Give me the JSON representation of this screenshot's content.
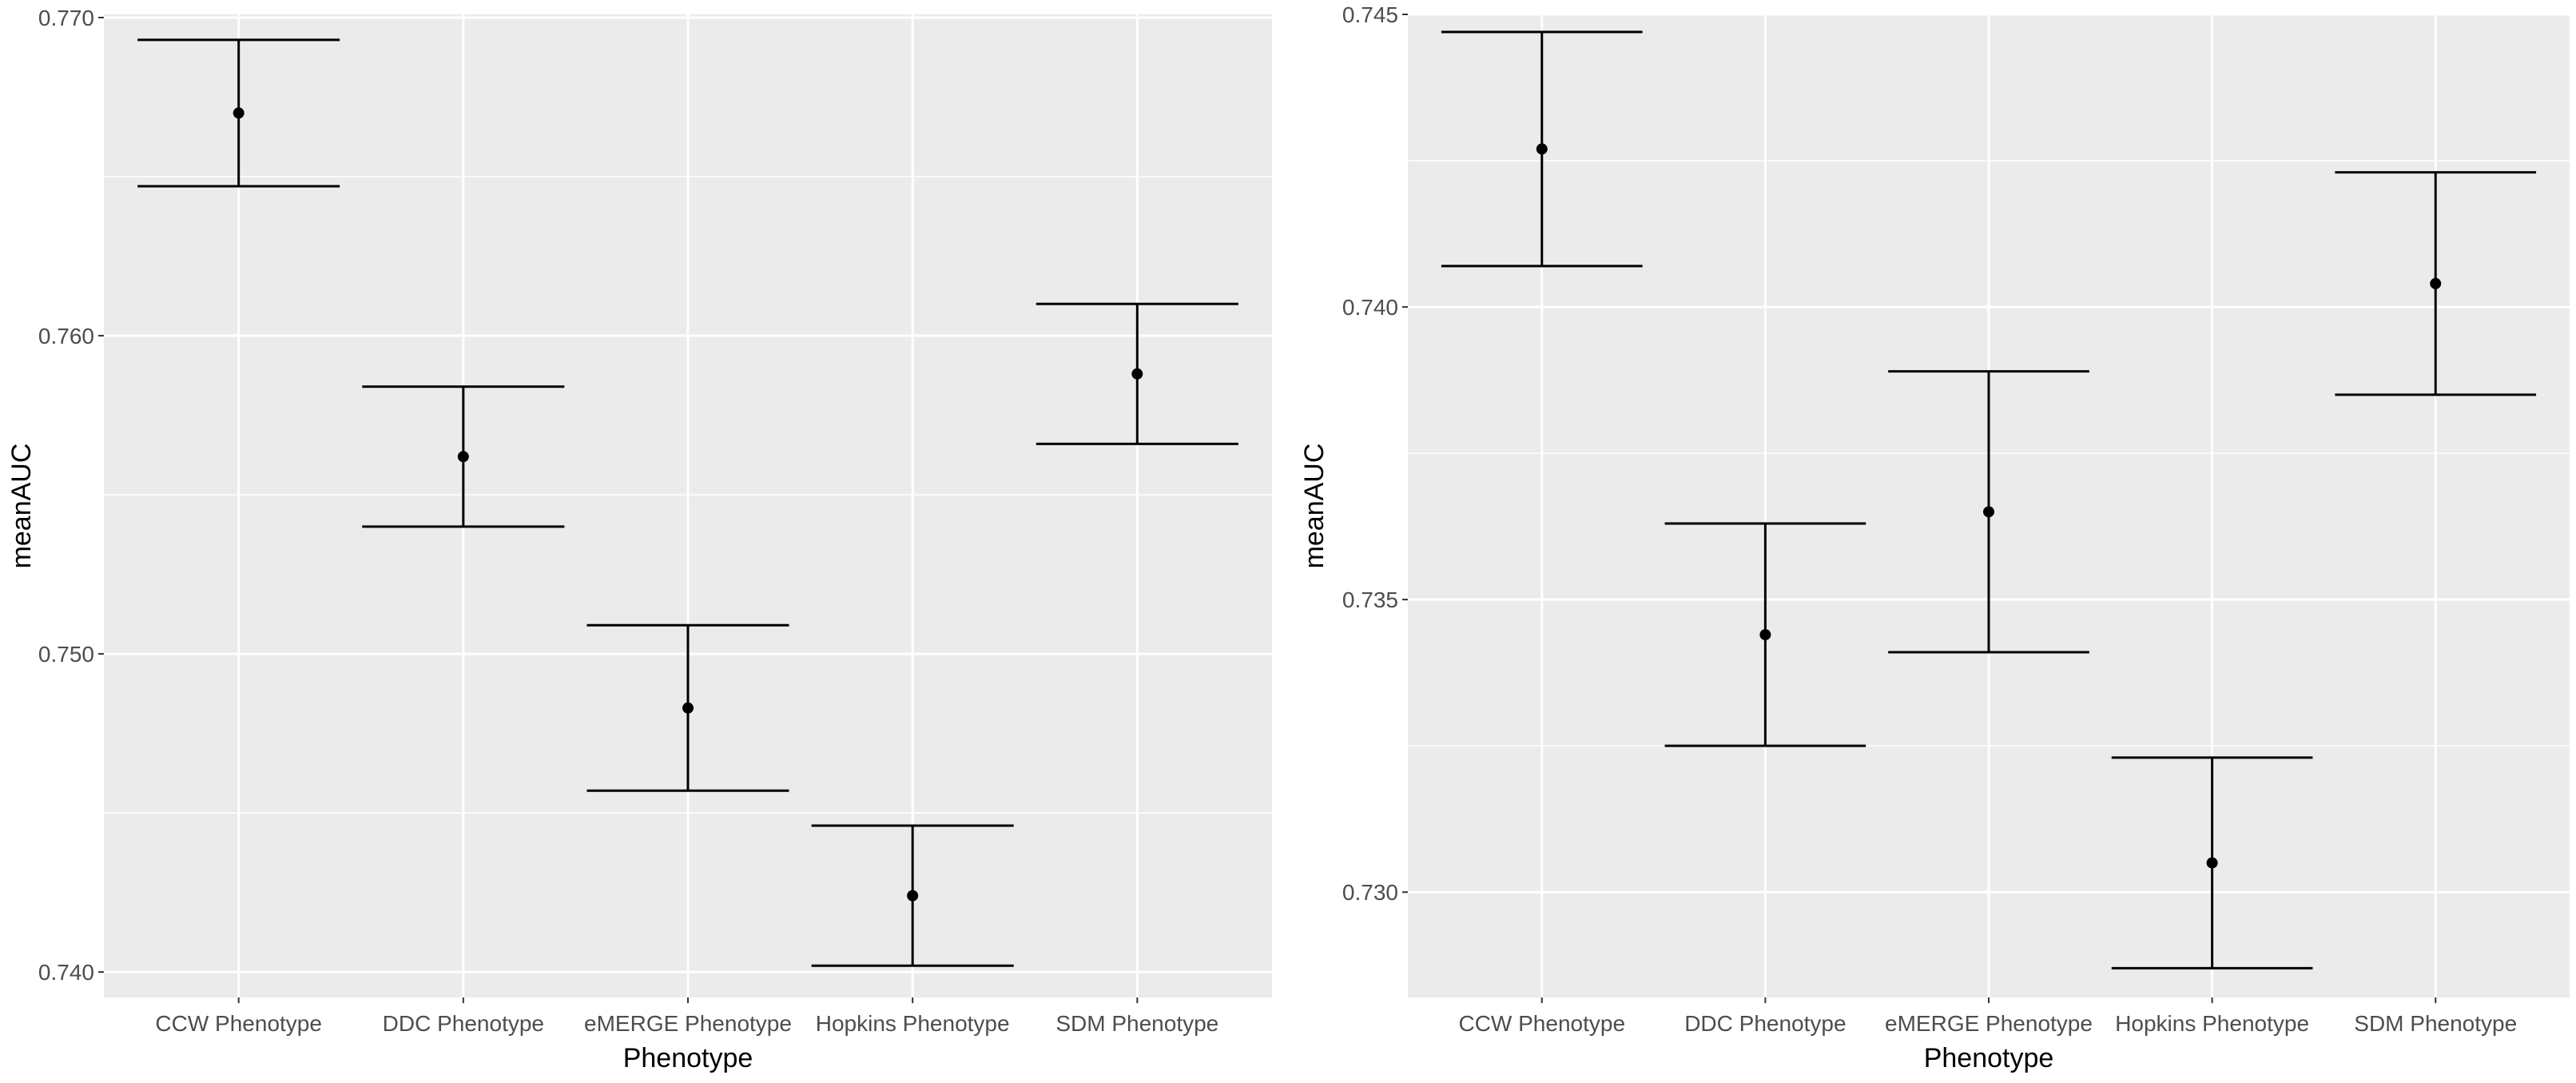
{
  "chart_data": [
    {
      "type": "errorbar",
      "title": "",
      "xlabel": "Phenotype",
      "ylabel": "meanAUC",
      "categories": [
        "CCW Phenotype",
        "DDC Phenotype",
        "eMERGE Phenotype",
        "Hopkins Phenotype",
        "SDM Phenotype"
      ],
      "values": [
        0.767,
        0.7562,
        0.7483,
        0.7424,
        0.7588
      ],
      "lower": [
        0.7647,
        0.754,
        0.7457,
        0.7402,
        0.7566
      ],
      "upper": [
        0.7693,
        0.7584,
        0.7509,
        0.7446,
        0.761
      ],
      "ylim": [
        0.7392,
        0.7701
      ],
      "yticks": [
        0.74,
        0.75,
        0.76,
        0.77
      ],
      "ytick_labels": [
        "0.740",
        "0.750",
        "0.760",
        "0.770"
      ],
      "grid": true
    },
    {
      "type": "errorbar",
      "title": "",
      "xlabel": "Phenotype",
      "ylabel": "meanAUC",
      "categories": [
        "CCW Phenotype",
        "DDC Phenotype",
        "eMERGE Phenotype",
        "Hopkins Phenotype",
        "SDM Phenotype"
      ],
      "values": [
        0.7427,
        0.7344,
        0.7365,
        0.7305,
        0.7404
      ],
      "lower": [
        0.7407,
        0.7325,
        0.7341,
        0.7287,
        0.7385
      ],
      "upper": [
        0.7447,
        0.7363,
        0.7389,
        0.7323,
        0.7423
      ],
      "ylim": [
        0.7282,
        0.745
      ],
      "yticks": [
        0.73,
        0.735,
        0.74,
        0.745
      ],
      "ytick_labels": [
        "0.730",
        "0.735",
        "0.740",
        "0.745"
      ],
      "grid": true
    }
  ]
}
